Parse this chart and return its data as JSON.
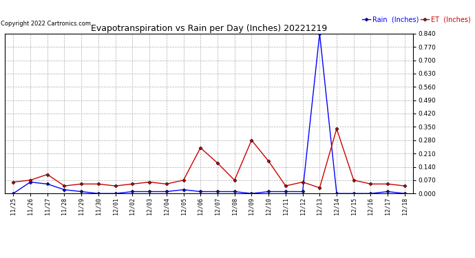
{
  "title": "Evapotranspiration vs Rain per Day (Inches) 20221219",
  "copyright": "Copyright 2022 Cartronics.com",
  "legend_rain": "Rain  (Inches)",
  "legend_et": "ET  (Inches)",
  "x_labels": [
    "11/25",
    "11/26",
    "11/27",
    "11/28",
    "11/29",
    "11/30",
    "12/01",
    "12/02",
    "12/03",
    "12/04",
    "12/05",
    "12/06",
    "12/07",
    "12/08",
    "12/09",
    "12/10",
    "12/11",
    "12/12",
    "12/13",
    "12/14",
    "12/15",
    "12/16",
    "12/17",
    "12/18"
  ],
  "rain_data": [
    0.0,
    0.06,
    0.05,
    0.02,
    0.01,
    0.0,
    0.0,
    0.01,
    0.01,
    0.01,
    0.02,
    0.01,
    0.01,
    0.01,
    0.0,
    0.01,
    0.01,
    0.01,
    0.84,
    0.0,
    0.0,
    0.0,
    0.01,
    0.0
  ],
  "et_data": [
    0.06,
    0.07,
    0.1,
    0.04,
    0.05,
    0.05,
    0.04,
    0.05,
    0.06,
    0.05,
    0.07,
    0.24,
    0.16,
    0.07,
    0.28,
    0.17,
    0.04,
    0.06,
    0.03,
    0.34,
    0.07,
    0.05,
    0.05,
    0.04
  ],
  "ylim": [
    0.0,
    0.84
  ],
  "y_ticks": [
    0.0,
    0.07,
    0.14,
    0.21,
    0.28,
    0.35,
    0.42,
    0.49,
    0.56,
    0.63,
    0.7,
    0.77,
    0.84
  ],
  "rain_color": "#0000ff",
  "et_color": "#cc0000",
  "title_color": "#000000",
  "copyright_color": "#000000",
  "background_color": "#ffffff",
  "grid_color": "#999999"
}
